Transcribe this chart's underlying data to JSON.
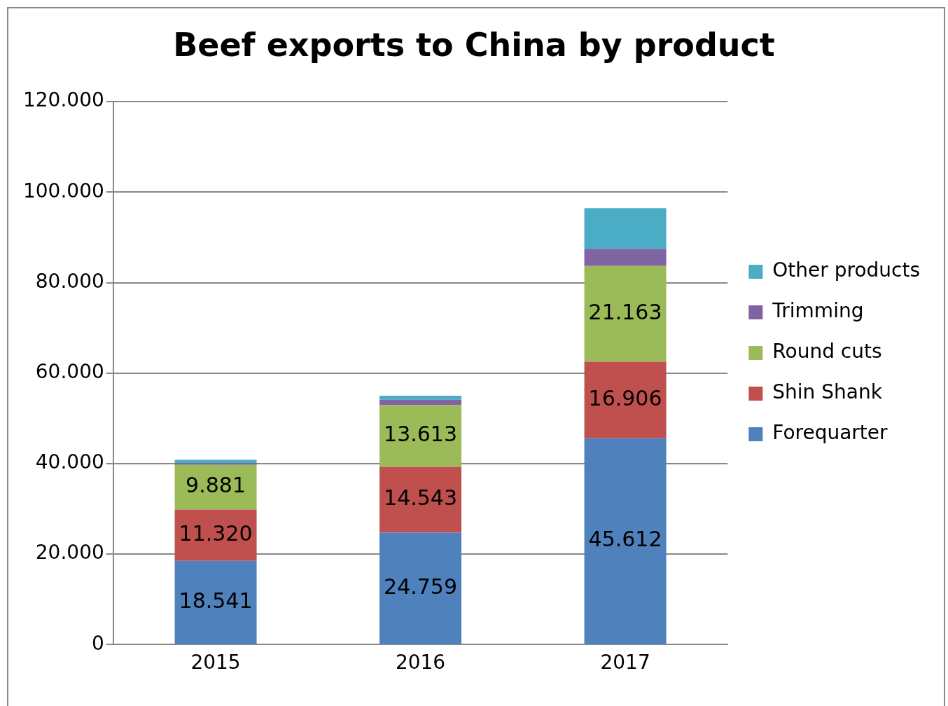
{
  "chart_data": {
    "type": "bar",
    "title": "Beef exports to China by product",
    "stacked": true,
    "categories": [
      "2015",
      "2016",
      "2017"
    ],
    "series": [
      {
        "name": "Forequarter",
        "color": "#4f81bd",
        "values": [
          18541,
          24759,
          45612
        ],
        "value_labels": [
          "18.541",
          "24.759",
          "45.612"
        ]
      },
      {
        "name": "Shin Shank",
        "color": "#c0504d",
        "values": [
          11320,
          14543,
          16906
        ],
        "value_labels": [
          "11.320",
          "14.543",
          "16.906"
        ]
      },
      {
        "name": "Round cuts",
        "color": "#9bbb59",
        "values": [
          9881,
          13613,
          21163
        ],
        "value_labels": [
          "9.881",
          "13.613",
          "21.163"
        ]
      },
      {
        "name": "Trimming",
        "color": "#8064a2",
        "values": [
          400,
          1200,
          3800
        ]
      },
      {
        "name": "Other products",
        "color": "#4bacc6",
        "values": [
          700,
          900,
          9000
        ]
      }
    ],
    "ylim": [
      0,
      120000
    ],
    "yticks": [
      {
        "value": 0,
        "label": "0"
      },
      {
        "value": 20000,
        "label": "20.000"
      },
      {
        "value": 40000,
        "label": "40.000"
      },
      {
        "value": 60000,
        "label": "60.000"
      },
      {
        "value": 80000,
        "label": "80.000"
      },
      {
        "value": 100000,
        "label": "100.000"
      },
      {
        "value": 120000,
        "label": "120.000"
      }
    ],
    "grid": "y",
    "legend": "right"
  }
}
